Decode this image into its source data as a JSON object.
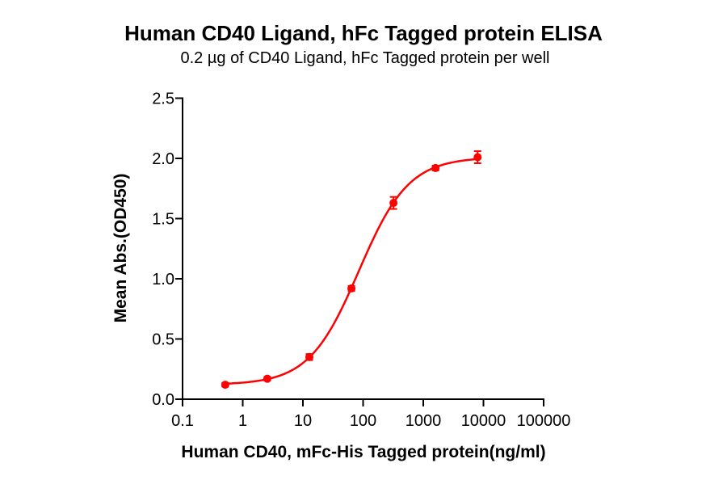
{
  "chart_data": {
    "type": "scatter",
    "title": "Human CD40 Ligand, hFc Tagged protein ELISA",
    "subtitle": "0.2 µg of CD40 Ligand, hFc Tagged protein per well",
    "xlabel": "Human CD40, mFc-His Tagged protein(ng/ml)",
    "ylabel": "Mean Abs.(OD450)",
    "x_scale": "log10",
    "xlim": [
      0.1,
      100000
    ],
    "ylim": [
      0,
      2.5
    ],
    "x_ticks": [
      0.1,
      1,
      10,
      100,
      1000,
      10000,
      100000
    ],
    "x_tick_labels": [
      "0.1",
      "1",
      "10",
      "100",
      "1000",
      "10000",
      "100000"
    ],
    "y_ticks": [
      0,
      0.5,
      1,
      1.5,
      2,
      2.5
    ],
    "y_tick_labels": [
      "0.0",
      "0.5",
      "1.0",
      "1.5",
      "2.0",
      "2.5"
    ],
    "grid": false,
    "legend": null,
    "axis_color": "#000000",
    "series": [
      {
        "name": "Human CD40, mFc-His Tagged protein",
        "marker": "circle",
        "color": "#ff0000",
        "x": [
          0.512,
          2.56,
          12.8,
          64,
          320,
          1600,
          8000
        ],
        "y": [
          0.12,
          0.17,
          0.35,
          0.92,
          1.63,
          1.92,
          2.01
        ],
        "y_err": [
          0.015,
          0.015,
          0.025,
          0.02,
          0.05,
          0.02,
          0.05
        ]
      }
    ],
    "fit": {
      "model": "4PL",
      "bottom": 0.12,
      "top": 2.01,
      "ec50_ng_ml": 85,
      "hill": 1.05
    }
  }
}
